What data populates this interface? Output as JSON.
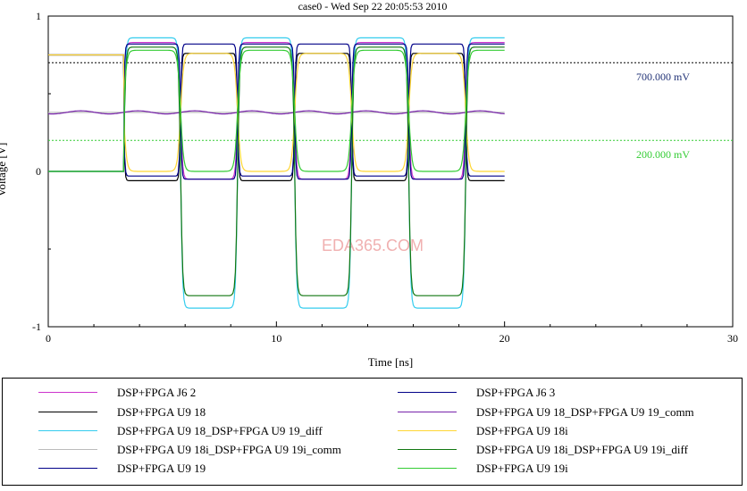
{
  "window": {
    "title": "case0 - Wed Sep 22 20:05:53 2010"
  },
  "chart_data": {
    "type": "line",
    "title": "case0 - Wed Sep 22 20:05:53 2010",
    "xlabel": "Time [ns]",
    "ylabel": "Voltage [V]",
    "xlim": [
      0,
      30
    ],
    "ylim": [
      -1,
      1
    ],
    "x_ticks": [
      "0",
      "10",
      "20",
      "30"
    ],
    "y_ticks": [
      "1",
      "0",
      "-1"
    ],
    "grid": false,
    "legend_placement": "bottom",
    "watermark": "EDA365.COM",
    "signal": {
      "period_ns": 5,
      "t_start_ns": 3.3,
      "t_end_ns": 20
    },
    "markers": [
      {
        "value_v": 0.7,
        "label": "700.000 mV",
        "color": "#000000"
      },
      {
        "value_v": 0.2,
        "label": "200.000 mV",
        "color": "#33cc33"
      }
    ],
    "series": [
      {
        "name": "DSP+FPGA J6 2",
        "color": "#cc33cc",
        "high": 0.83,
        "low": -0.05,
        "init": 0.0,
        "phase": "rise",
        "shape": "smooth"
      },
      {
        "name": "DSP+FPGA U9 18",
        "color": "#000000",
        "high": 0.76,
        "low": -0.06,
        "init": 0.75,
        "phase": "fall",
        "shape": "sharp"
      },
      {
        "name": "DSP+FPGA U9 18_DSP+FPGA U9 19_diff",
        "color": "#33ccee",
        "high": 0.86,
        "low": -0.88,
        "init": 0.0,
        "phase": "rise",
        "shape": "smooth"
      },
      {
        "name": "DSP+FPGA U9 18i_DSP+FPGA U9 19i_comm",
        "color": "#bbbbbb",
        "high": 0.38,
        "low": 0.38,
        "init": 0.38,
        "phase": "flat",
        "shape": "flat"
      },
      {
        "name": "DSP+FPGA U9 19",
        "color": "#000088",
        "high": 0.82,
        "low": -0.05,
        "init": 0.0,
        "phase": "rise",
        "shape": "sharp"
      },
      {
        "name": "DSP+FPGA J6 3",
        "color": "#000088",
        "high": 0.82,
        "low": -0.03,
        "init": 0.75,
        "phase": "fall",
        "shape": "sharp"
      },
      {
        "name": "DSP+FPGA U9 18_DSP+FPGA U9 19_comm",
        "color": "#7722aa",
        "high": 0.39,
        "low": 0.37,
        "init": 0.38,
        "phase": "ripple",
        "shape": "ripple"
      },
      {
        "name": "DSP+FPGA U9 18i",
        "color": "#ffd633",
        "high": 0.76,
        "low": 0.0,
        "init": 0.75,
        "phase": "fall",
        "shape": "slow"
      },
      {
        "name": "DSP+FPGA U9 18i_DSP+FPGA U9 19i_diff",
        "color": "#117711",
        "high": 0.8,
        "low": -0.8,
        "init": 0.0,
        "phase": "rise",
        "shape": "smooth"
      },
      {
        "name": "DSP+FPGA U9 19i",
        "color": "#33cc33",
        "high": 0.78,
        "low": 0.0,
        "init": 0.0,
        "phase": "rise",
        "shape": "slow"
      }
    ]
  }
}
